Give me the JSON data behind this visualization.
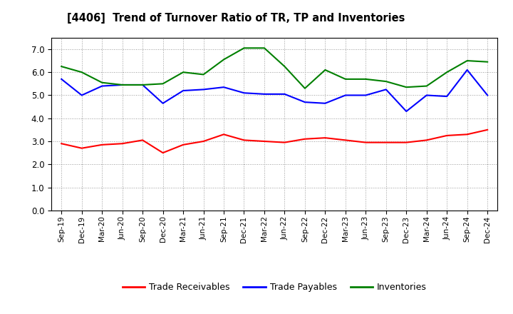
{
  "title": "[4406]  Trend of Turnover Ratio of TR, TP and Inventories",
  "x_labels": [
    "Sep-19",
    "Dec-19",
    "Mar-20",
    "Jun-20",
    "Sep-20",
    "Dec-20",
    "Mar-21",
    "Jun-21",
    "Sep-21",
    "Dec-21",
    "Mar-22",
    "Jun-22",
    "Sep-22",
    "Dec-22",
    "Mar-23",
    "Jun-23",
    "Sep-23",
    "Dec-23",
    "Mar-24",
    "Jun-24",
    "Sep-24",
    "Dec-24"
  ],
  "trade_receivables": [
    2.9,
    2.7,
    2.85,
    2.9,
    3.05,
    2.5,
    2.85,
    3.0,
    3.3,
    3.05,
    3.0,
    2.95,
    3.1,
    3.15,
    3.05,
    2.95,
    2.95,
    2.95,
    3.05,
    3.25,
    3.3,
    3.5
  ],
  "trade_payables": [
    5.7,
    5.0,
    5.4,
    5.45,
    5.45,
    4.65,
    5.2,
    5.25,
    5.35,
    5.1,
    5.05,
    5.05,
    4.7,
    4.65,
    5.0,
    5.0,
    5.25,
    4.3,
    5.0,
    4.95,
    6.1,
    5.0
  ],
  "inventories": [
    6.25,
    6.0,
    5.55,
    5.45,
    5.45,
    5.5,
    6.0,
    5.9,
    6.55,
    7.05,
    7.05,
    6.25,
    5.3,
    6.1,
    5.7,
    5.7,
    5.6,
    5.35,
    5.4,
    6.0,
    6.5,
    6.45
  ],
  "tr_color": "#ff0000",
  "tp_color": "#0000ff",
  "inv_color": "#008000",
  "ylim": [
    0.0,
    7.5
  ],
  "yticks": [
    0.0,
    1.0,
    2.0,
    3.0,
    4.0,
    5.0,
    6.0,
    7.0
  ],
  "legend_labels": [
    "Trade Receivables",
    "Trade Payables",
    "Inventories"
  ],
  "background_color": "#ffffff",
  "grid_color": "#999999"
}
